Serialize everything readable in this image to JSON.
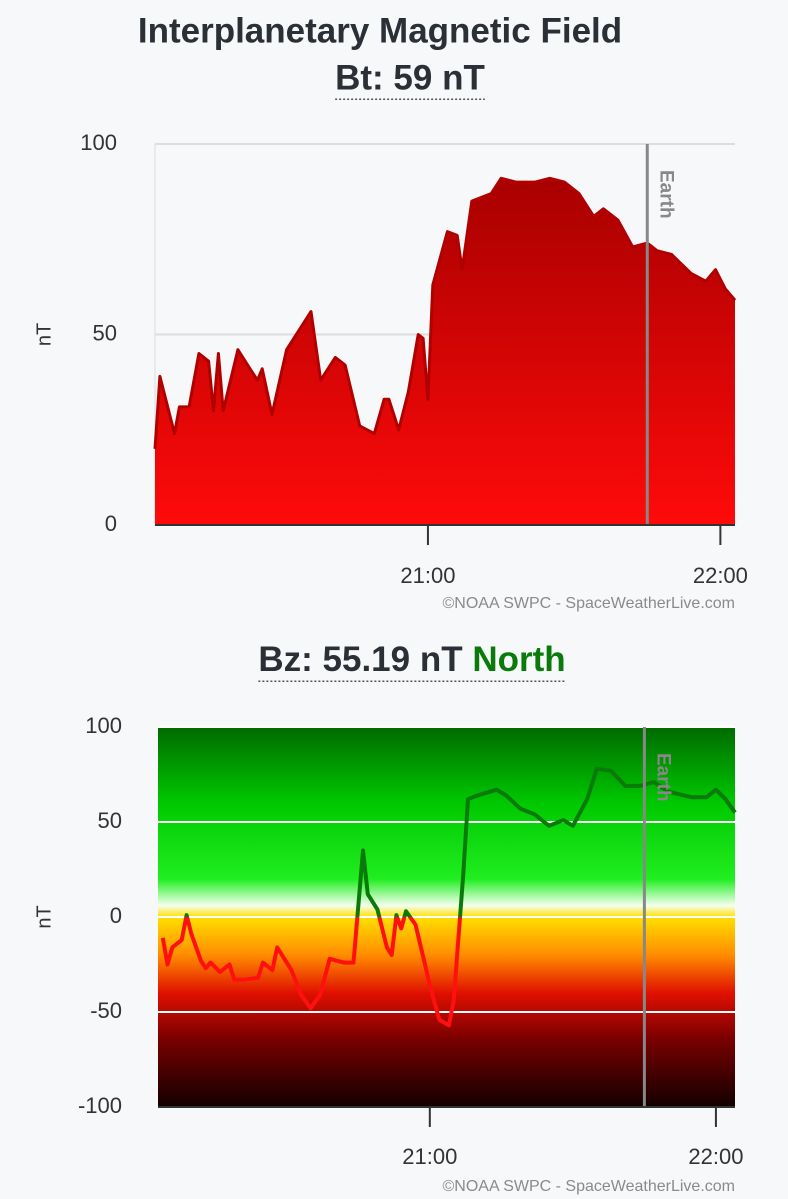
{
  "chart_data": [
    {
      "type": "area",
      "title": "Interplanetary Magnetic Field",
      "subtitle": "Bt: 59 nT",
      "y_label": "nT",
      "credit": "©NOAA SWPC - SpaceWeatherLive.com",
      "annotation": {
        "x": "21:45",
        "label": "Earth"
      },
      "color": "#b00000",
      "xlim": [
        "20:04",
        "22:03"
      ],
      "xticks": [
        "21:00",
        "22:00"
      ],
      "ylim": [
        0,
        100
      ],
      "yticks": [
        0,
        50,
        100
      ],
      "grid": true,
      "x": [
        "20:04",
        "20:05",
        "20:08",
        "20:09",
        "20:11",
        "20:13",
        "20:15",
        "20:16",
        "20:17",
        "20:18",
        "20:21",
        "20:23",
        "20:25",
        "20:26",
        "20:28",
        "20:31",
        "20:36",
        "20:38",
        "20:41",
        "20:43",
        "20:46",
        "20:49",
        "20:51",
        "20:52",
        "20:54",
        "20:56",
        "20:58",
        "20:59",
        "21:00",
        "21:01",
        "21:04",
        "21:06",
        "21:07",
        "21:09",
        "21:13",
        "21:15",
        "21:18",
        "21:22",
        "21:25",
        "21:28",
        "21:31",
        "21:34",
        "21:36",
        "21:39",
        "21:42",
        "21:45",
        "21:47",
        "21:50",
        "21:54",
        "21:57",
        "21:59",
        "22:01",
        "22:03"
      ],
      "values": [
        20,
        39,
        24,
        31,
        31,
        45,
        43,
        30,
        45,
        30,
        46,
        42,
        38,
        41,
        29,
        46,
        56,
        38,
        44,
        42,
        26,
        24,
        33,
        33,
        25,
        35,
        50,
        49,
        33,
        63,
        77,
        76,
        67,
        85,
        87,
        91,
        90,
        90,
        91,
        90,
        87,
        81,
        83,
        80,
        73,
        74,
        72,
        71,
        66,
        64,
        67,
        62,
        59
      ]
    },
    {
      "type": "line",
      "title": "Bz: 55.19 nT",
      "direction": "North",
      "y_label": "nT",
      "credit": "©NOAA SWPC - SpaceWeatherLive.com",
      "annotation": {
        "x": "21:45",
        "label": "Earth"
      },
      "positive_color": "#0a7a0a",
      "negative_color": "#ff1010",
      "xlim": [
        "20:03",
        "22:04"
      ],
      "xticks": [
        "21:00",
        "22:00"
      ],
      "ylim": [
        -100,
        100
      ],
      "yticks": [
        -100,
        -50,
        0,
        50,
        100
      ],
      "grid": true,
      "x": [
        "20:04",
        "20:05",
        "20:06",
        "20:08",
        "20:09",
        "20:10",
        "20:12",
        "20:13",
        "20:14",
        "20:16",
        "20:18",
        "20:19",
        "20:21",
        "20:24",
        "20:25",
        "20:27",
        "20:28",
        "20:31",
        "20:33",
        "20:35",
        "20:37",
        "20:39",
        "20:42",
        "20:44",
        "20:46",
        "20:47",
        "20:49",
        "20:51",
        "20:52",
        "20:53",
        "20:54",
        "20:55",
        "20:57",
        "20:59",
        "21:00",
        "21:02",
        "21:04",
        "21:05",
        "21:07",
        "21:08",
        "21:10",
        "21:14",
        "21:16",
        "21:19",
        "21:22",
        "21:25",
        "21:28",
        "21:30",
        "21:33",
        "21:35",
        "21:38",
        "21:41",
        "21:44",
        "21:47",
        "21:50",
        "21:55",
        "21:58",
        "22:00",
        "22:02",
        "22:04"
      ],
      "values": [
        -11,
        -25,
        -16,
        -12,
        1,
        -9,
        -23,
        -27,
        -24,
        -29,
        -25,
        -33,
        -33,
        -32,
        -24,
        -28,
        -16,
        -28,
        -41,
        -48,
        -41,
        -22,
        -24,
        -24,
        35,
        12,
        4,
        -16,
        -20,
        1,
        -6,
        3,
        -4,
        -25,
        -36,
        -54,
        -57,
        -44,
        22,
        62,
        64,
        67,
        64,
        57,
        54,
        48,
        51,
        48,
        62,
        78,
        77,
        69,
        69,
        71,
        66,
        63,
        63,
        67,
        62,
        55
      ]
    }
  ]
}
